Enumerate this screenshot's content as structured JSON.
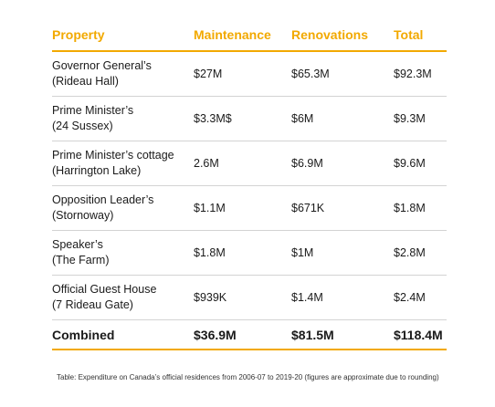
{
  "colors": {
    "accent": "#f2a900",
    "rule": "#d3d3d3",
    "text": "#1a1a1a"
  },
  "table": {
    "headers": [
      "Property",
      "Maintenance",
      "Renovations",
      "Total"
    ],
    "rows": [
      {
        "property_line1": "Governor General’s",
        "property_line2": "(Rideau Hall)",
        "maintenance": "$27M",
        "renovations": "$65.3M",
        "total": "$92.3M"
      },
      {
        "property_line1": "Prime Minister’s",
        "property_line2": "(24 Sussex)",
        "maintenance": "$3.3M$",
        "renovations": "$6M",
        "total": "$9.3M"
      },
      {
        "property_line1": "Prime Minister’s cottage",
        "property_line2": "(Harrington Lake)",
        "maintenance": "2.6M",
        "renovations": "$6.9M",
        "total": "$9.6M"
      },
      {
        "property_line1": "Opposition Leader’s",
        "property_line2": "(Stornoway)",
        "maintenance": "$1.1M",
        "renovations": "$671K",
        "total": "$1.8M"
      },
      {
        "property_line1": "Speaker’s",
        "property_line2": "(The Farm)",
        "maintenance": "$1.8M",
        "renovations": "$1M",
        "total": "$2.8M"
      },
      {
        "property_line1": "Official Guest House",
        "property_line2": "(7 Rideau Gate)",
        "maintenance": "$939K",
        "renovations": "$1.4M",
        "total": "$2.4M"
      }
    ],
    "combined": {
      "label": "Combined",
      "maintenance": "$36.9M",
      "renovations": "$81.5M",
      "total": "$118.4M"
    }
  },
  "caption": "Table: Expenditure on Canada’s official residences from 2006-07 to 2019-20 (figures are approximate due to rounding)"
}
